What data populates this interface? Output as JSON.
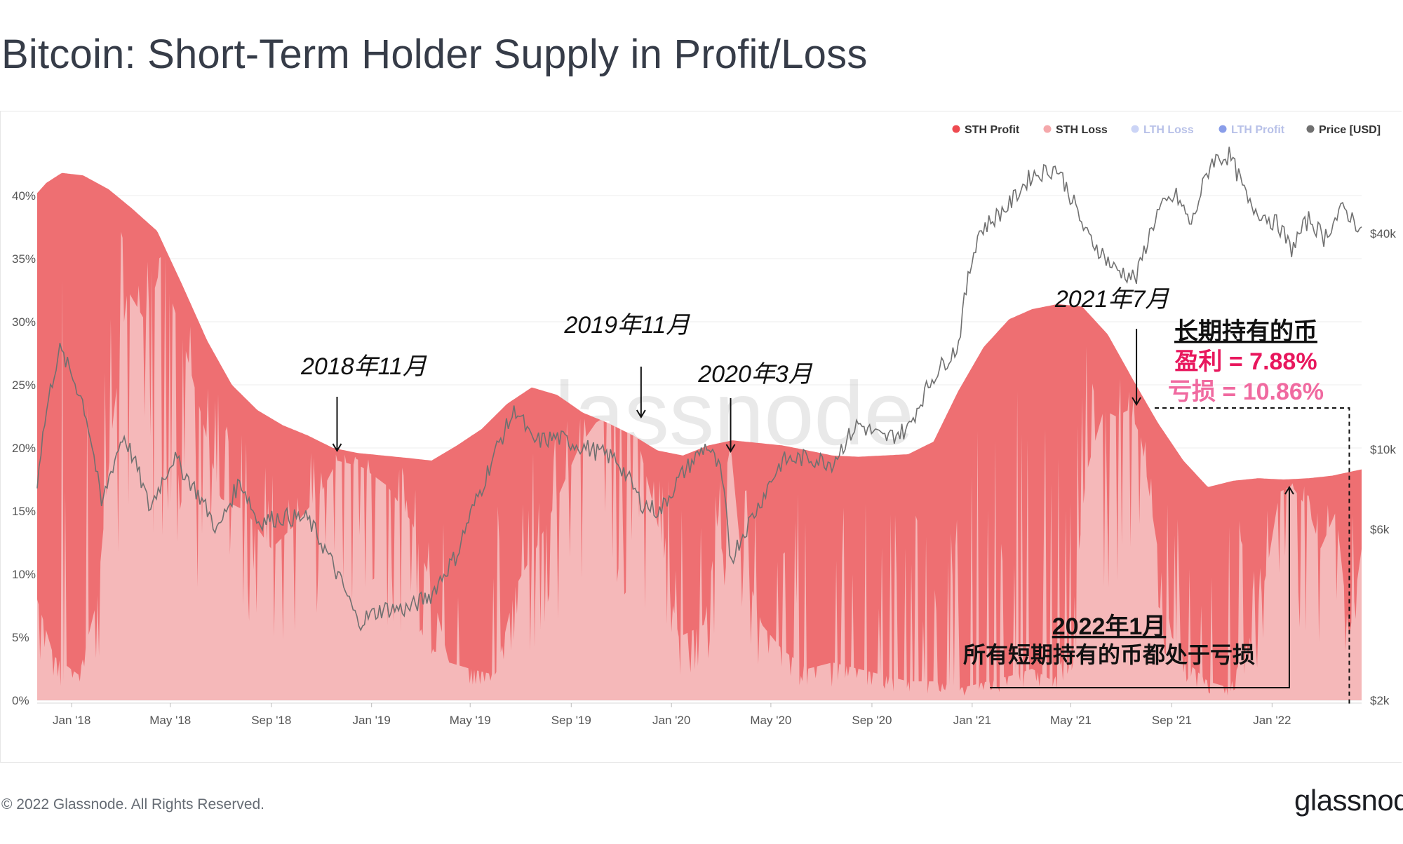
{
  "page": {
    "title": "Bitcoin: Short-Term Holder Supply in Profit/Loss",
    "copyright": "© 2022 Glassnode. All Rights Reserved.",
    "logo": "glassnode",
    "watermark": "glassnode"
  },
  "colors": {
    "sth_profit": "#ee6f72",
    "sth_loss": "#f5b8b9",
    "lth_loss": "#a8b8f0",
    "lth_profit": "#3b5bdb",
    "price": "#707070",
    "annotation_profit": "#e8175d",
    "annotation_loss": "#f06aa0"
  },
  "chart_data": {
    "type": "area",
    "title": "Bitcoin: Short-Term Holder Supply in Profit/Loss",
    "legend_position": "top-right",
    "legend": [
      {
        "name": "STH Profit",
        "color": "#ee4a50",
        "dim": false
      },
      {
        "name": "STH Loss",
        "color": "#f5a8ab",
        "dim": false
      },
      {
        "name": "LTH Loss",
        "color": "#a8b8f0",
        "dim": true
      },
      {
        "name": "LTH Profit",
        "color": "#3b5bdb",
        "dim": true
      },
      {
        "name": "Price [USD]",
        "color": "#707070",
        "dim": false
      }
    ],
    "x_ticks": [
      "Jan '18",
      "May '18",
      "Sep '18",
      "Jan '19",
      "May '19",
      "Sep '19",
      "Jan '20",
      "May '20",
      "Sep '20",
      "Jan '21",
      "May '21",
      "Sep '21",
      "Jan '22"
    ],
    "x_range": [
      "2017-11-20",
      "2022-04-20"
    ],
    "y_left": {
      "ticks": [
        "0%",
        "5%",
        "10%",
        "15%",
        "20%",
        "25%",
        "30%",
        "35%",
        "40%"
      ],
      "range": [
        0,
        45
      ]
    },
    "y_right": {
      "ticks": [
        "$2k",
        "$6k",
        "$10k",
        "$40k"
      ],
      "tick_values": [
        2000,
        6000,
        10000,
        40000
      ],
      "scale": "log"
    },
    "sth_total_supply_pct": {
      "x": [
        "2017-11-20",
        "2017-12-01",
        "2017-12-20",
        "2018-01-15",
        "2018-02-15",
        "2018-03-15",
        "2018-04-15",
        "2018-05-15",
        "2018-06-15",
        "2018-07-15",
        "2018-08-15",
        "2018-09-15",
        "2018-10-15",
        "2018-11-15",
        "2018-12-15",
        "2019-01-15",
        "2019-02-15",
        "2019-03-15",
        "2019-04-15",
        "2019-05-15",
        "2019-06-15",
        "2019-07-15",
        "2019-08-15",
        "2019-09-15",
        "2019-10-15",
        "2019-11-15",
        "2019-12-15",
        "2020-01-15",
        "2020-02-15",
        "2020-03-15",
        "2020-04-15",
        "2020-05-15",
        "2020-06-15",
        "2020-07-15",
        "2020-08-15",
        "2020-09-15",
        "2020-10-15",
        "2020-11-15",
        "2020-12-15",
        "2021-01-15",
        "2021-02-15",
        "2021-03-15",
        "2021-04-15",
        "2021-05-15",
        "2021-06-15",
        "2021-07-15",
        "2021-08-15",
        "2021-09-15",
        "2021-10-15",
        "2021-11-15",
        "2021-12-15",
        "2022-01-15",
        "2022-02-15",
        "2022-03-15",
        "2022-04-20"
      ],
      "values": [
        40.2,
        41.0,
        41.8,
        41.6,
        40.5,
        39.0,
        37.2,
        33.0,
        28.5,
        25.0,
        23.0,
        21.8,
        21.0,
        20.0,
        19.6,
        19.4,
        19.2,
        19.0,
        20.2,
        21.5,
        23.5,
        24.8,
        24.2,
        22.8,
        22.0,
        21.0,
        19.8,
        19.4,
        20.2,
        20.6,
        20.4,
        20.2,
        19.8,
        19.4,
        19.3,
        19.4,
        19.5,
        20.5,
        24.5,
        28.0,
        30.2,
        31.0,
        31.4,
        31.2,
        29.0,
        25.5,
        22.0,
        19.0,
        16.9,
        17.4,
        17.6,
        17.5,
        17.6,
        17.8,
        18.3
      ]
    },
    "sth_loss_pct": {
      "x": [
        "2017-11-20",
        "2017-12-10",
        "2018-01-10",
        "2018-02-01",
        "2018-02-20",
        "2018-03-10",
        "2018-04-01",
        "2018-04-20",
        "2018-05-15",
        "2018-06-10",
        "2018-07-01",
        "2018-08-01",
        "2018-09-01",
        "2018-10-01",
        "2018-11-01",
        "2018-11-20",
        "2018-12-20",
        "2019-01-20",
        "2019-02-20",
        "2019-03-15",
        "2019-04-05",
        "2019-05-01",
        "2019-06-01",
        "2019-06-25",
        "2019-07-20",
        "2019-08-15",
        "2019-09-10",
        "2019-10-01",
        "2019-10-25",
        "2019-11-20",
        "2019-12-15",
        "2020-01-10",
        "2020-02-10",
        "2020-03-01",
        "2020-03-13",
        "2020-03-25",
        "2020-04-20",
        "2020-05-15",
        "2020-06-15",
        "2020-07-15",
        "2020-08-15",
        "2020-09-15",
        "2020-10-15",
        "2020-11-15",
        "2020-12-20",
        "2021-01-20",
        "2021-02-20",
        "2021-03-15",
        "2021-04-10",
        "2021-05-01",
        "2021-05-20",
        "2021-06-10",
        "2021-06-25",
        "2021-07-10",
        "2021-07-25",
        "2021-08-10",
        "2021-09-01",
        "2021-09-20",
        "2021-10-15",
        "2021-11-10",
        "2021-12-05",
        "2021-12-25",
        "2022-01-10",
        "2022-01-25",
        "2022-02-15",
        "2022-03-01",
        "2022-03-20",
        "2022-04-05",
        "2022-04-20"
      ],
      "values": [
        8.0,
        3.5,
        2.0,
        8.0,
        22.0,
        32.5,
        30.0,
        34.5,
        29.0,
        22.0,
        16.0,
        15.0,
        12.0,
        14.0,
        16.5,
        19.0,
        18.5,
        17.0,
        14.0,
        9.0,
        3.0,
        2.5,
        2.0,
        9.0,
        12.0,
        16.0,
        20.0,
        22.0,
        23.0,
        21.0,
        14.0,
        5.0,
        6.0,
        16.0,
        20.2,
        12.0,
        6.0,
        4.0,
        2.5,
        3.0,
        2.5,
        2.0,
        1.5,
        1.5,
        1.0,
        1.5,
        2.0,
        2.5,
        1.5,
        5.0,
        18.0,
        23.0,
        22.5,
        23.0,
        21.0,
        14.0,
        5.0,
        3.0,
        1.5,
        1.0,
        5.0,
        10.0,
        16.5,
        17.0,
        15.0,
        12.0,
        15.0,
        5.0,
        12.0
      ]
    },
    "price_usd": {
      "x": [
        "2017-11-20",
        "2017-12-17",
        "2018-01-15",
        "2018-02-06",
        "2018-03-05",
        "2018-04-06",
        "2018-05-05",
        "2018-06-28",
        "2018-07-25",
        "2018-08-15",
        "2018-09-15",
        "2018-10-15",
        "2018-11-20",
        "2018-12-15",
        "2019-01-15",
        "2019-02-15",
        "2019-03-15",
        "2019-04-15",
        "2019-05-15",
        "2019-06-26",
        "2019-07-15",
        "2019-08-15",
        "2019-09-15",
        "2019-10-26",
        "2019-11-25",
        "2019-12-18",
        "2020-01-15",
        "2020-02-13",
        "2020-03-01",
        "2020-03-13",
        "2020-04-15",
        "2020-05-15",
        "2020-06-15",
        "2020-07-15",
        "2020-08-15",
        "2020-09-15",
        "2020-10-15",
        "2020-11-15",
        "2020-12-15",
        "2021-01-08",
        "2021-02-15",
        "2021-03-14",
        "2021-04-14",
        "2021-05-19",
        "2021-06-22",
        "2021-07-20",
        "2021-08-15",
        "2021-09-06",
        "2021-09-25",
        "2021-10-20",
        "2021-11-10",
        "2021-12-04",
        "2022-01-10",
        "2022-01-24",
        "2022-02-15",
        "2022-03-05",
        "2022-03-29",
        "2022-04-20"
      ],
      "values": [
        8200,
        19000,
        13500,
        6900,
        11000,
        6800,
        9500,
        5900,
        8200,
        6300,
        6500,
        6400,
        4500,
        3300,
        3600,
        3600,
        3950,
        5100,
        7800,
        13000,
        10500,
        10800,
        10200,
        9400,
        7100,
        6700,
        8600,
        10300,
        8600,
        4900,
        6900,
        9300,
        9500,
        9200,
        11800,
        10700,
        11400,
        16000,
        19400,
        40000,
        48000,
        58000,
        61000,
        40000,
        32000,
        30000,
        46000,
        51000,
        42000,
        64000,
        66000,
        48000,
        42000,
        36000,
        44000,
        39000,
        47000,
        41000
      ]
    },
    "annotations": [
      {
        "label": "2018年11月",
        "date": "2018-11-20",
        "style": "italic"
      },
      {
        "label": "2019年11月",
        "date": "2019-11-25",
        "style": "italic"
      },
      {
        "label": "2020年3月",
        "date": "2020-03-13",
        "style": "italic"
      },
      {
        "label": "2021年7月",
        "date": "2021-07-20",
        "style": "italic"
      }
    ],
    "callout_2022": {
      "title": "2022年1月",
      "text": "所有短期持有的币都处于亏损",
      "date": "2022-01-22"
    },
    "callout_lth": {
      "title": "长期持有的币",
      "profit": "盈利 = 7.88%",
      "loss": "亏损 = 10.86%",
      "date": "2022-04-05"
    }
  }
}
